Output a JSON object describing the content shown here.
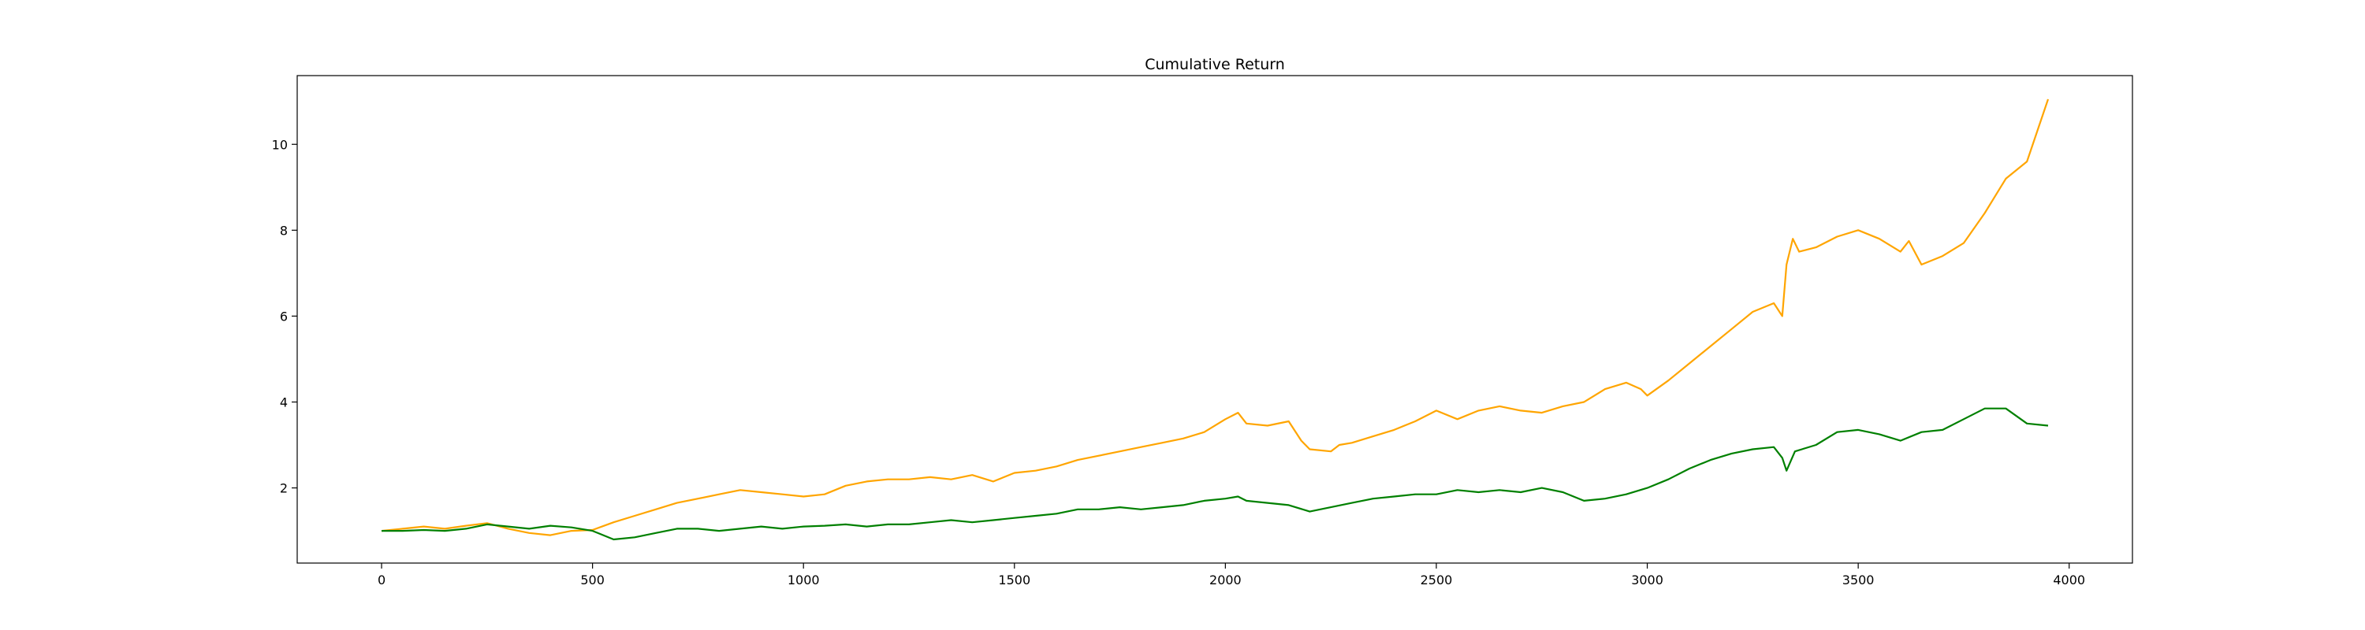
{
  "chart_data": {
    "type": "line",
    "title": "Cumulative Return",
    "xlabel": "",
    "ylabel": "",
    "xlim": [
      -200,
      4150
    ],
    "ylim": [
      0.25,
      11.6
    ],
    "grid": false,
    "x_ticks": [
      0,
      500,
      1000,
      1500,
      2000,
      2500,
      3000,
      3500,
      4000
    ],
    "y_ticks": [
      2,
      4,
      6,
      8,
      10
    ],
    "series": [
      {
        "color": "#ffa500",
        "x": [
          0,
          50,
          100,
          150,
          200,
          250,
          300,
          350,
          400,
          450,
          500,
          550,
          600,
          650,
          700,
          750,
          800,
          850,
          900,
          950,
          1000,
          1050,
          1100,
          1150,
          1200,
          1250,
          1300,
          1350,
          1400,
          1450,
          1500,
          1550,
          1600,
          1650,
          1700,
          1750,
          1800,
          1850,
          1900,
          1950,
          2000,
          2030,
          2050,
          2100,
          2150,
          2180,
          2200,
          2250,
          2270,
          2300,
          2350,
          2400,
          2450,
          2500,
          2550,
          2600,
          2650,
          2700,
          2750,
          2800,
          2850,
          2900,
          2950,
          2985,
          3000,
          3050,
          3100,
          3150,
          3200,
          3250,
          3300,
          3320,
          3330,
          3345,
          3360,
          3400,
          3450,
          3500,
          3550,
          3600,
          3620,
          3650,
          3700,
          3750,
          3800,
          3850,
          3900,
          3950
        ],
        "values": [
          1.0,
          1.05,
          1.1,
          1.05,
          1.12,
          1.18,
          1.05,
          0.95,
          0.9,
          1.0,
          1.02,
          1.2,
          1.35,
          1.5,
          1.65,
          1.75,
          1.85,
          1.95,
          1.9,
          1.85,
          1.8,
          1.85,
          2.05,
          2.15,
          2.2,
          2.2,
          2.25,
          2.2,
          2.3,
          2.15,
          2.35,
          2.4,
          2.5,
          2.65,
          2.75,
          2.85,
          2.95,
          3.05,
          3.15,
          3.3,
          3.6,
          3.75,
          3.5,
          3.45,
          3.55,
          3.1,
          2.9,
          2.85,
          3.0,
          3.05,
          3.2,
          3.35,
          3.55,
          3.8,
          3.6,
          3.8,
          3.9,
          3.8,
          3.75,
          3.9,
          4.0,
          4.3,
          4.45,
          4.3,
          4.15,
          4.5,
          4.9,
          5.3,
          5.7,
          6.1,
          6.3,
          6.0,
          7.2,
          7.8,
          7.5,
          7.6,
          7.85,
          8.0,
          7.8,
          7.5,
          7.75,
          7.2,
          7.4,
          7.7,
          8.4,
          9.2,
          9.6,
          11.05
        ]
      },
      {
        "color": "#008000",
        "x": [
          0,
          50,
          100,
          150,
          200,
          250,
          300,
          350,
          400,
          450,
          500,
          550,
          600,
          650,
          700,
          750,
          800,
          850,
          900,
          950,
          1000,
          1050,
          1100,
          1150,
          1200,
          1250,
          1300,
          1350,
          1400,
          1450,
          1500,
          1550,
          1600,
          1650,
          1700,
          1750,
          1800,
          1850,
          1900,
          1950,
          2000,
          2030,
          2050,
          2100,
          2150,
          2200,
          2250,
          2300,
          2350,
          2400,
          2450,
          2500,
          2550,
          2600,
          2650,
          2700,
          2750,
          2800,
          2850,
          2900,
          2950,
          3000,
          3050,
          3100,
          3150,
          3200,
          3250,
          3300,
          3320,
          3330,
          3350,
          3400,
          3450,
          3500,
          3550,
          3600,
          3650,
          3700,
          3750,
          3800,
          3850,
          3900,
          3950
        ],
        "values": [
          1.0,
          1.0,
          1.02,
          1.0,
          1.05,
          1.15,
          1.1,
          1.05,
          1.12,
          1.08,
          1.0,
          0.8,
          0.85,
          0.95,
          1.05,
          1.05,
          1.0,
          1.05,
          1.1,
          1.05,
          1.1,
          1.12,
          1.15,
          1.1,
          1.15,
          1.15,
          1.2,
          1.25,
          1.2,
          1.25,
          1.3,
          1.35,
          1.4,
          1.5,
          1.5,
          1.55,
          1.5,
          1.55,
          1.6,
          1.7,
          1.75,
          1.8,
          1.7,
          1.65,
          1.6,
          1.45,
          1.55,
          1.65,
          1.75,
          1.8,
          1.85,
          1.85,
          1.95,
          1.9,
          1.95,
          1.9,
          2.0,
          1.9,
          1.7,
          1.75,
          1.85,
          2.0,
          2.2,
          2.45,
          2.65,
          2.8,
          2.9,
          2.95,
          2.7,
          2.4,
          2.85,
          3.0,
          3.3,
          3.35,
          3.25,
          3.1,
          3.3,
          3.35,
          3.6,
          3.85,
          3.85,
          3.5,
          3.45
        ]
      }
    ]
  }
}
